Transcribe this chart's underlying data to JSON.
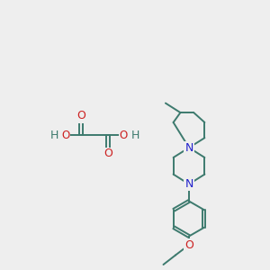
{
  "bg_color": "#eeeeee",
  "bond_color": "#3d7a6e",
  "N_color": "#2020cc",
  "O_color": "#cc2020",
  "H_color": "#3d7a6e",
  "line_width": 1.4,
  "font_size": 9,
  "fig_size": [
    3.0,
    3.0
  ],
  "dpi": 100,
  "xlim": [
    0,
    10
  ],
  "ylim": [
    0,
    10
  ]
}
